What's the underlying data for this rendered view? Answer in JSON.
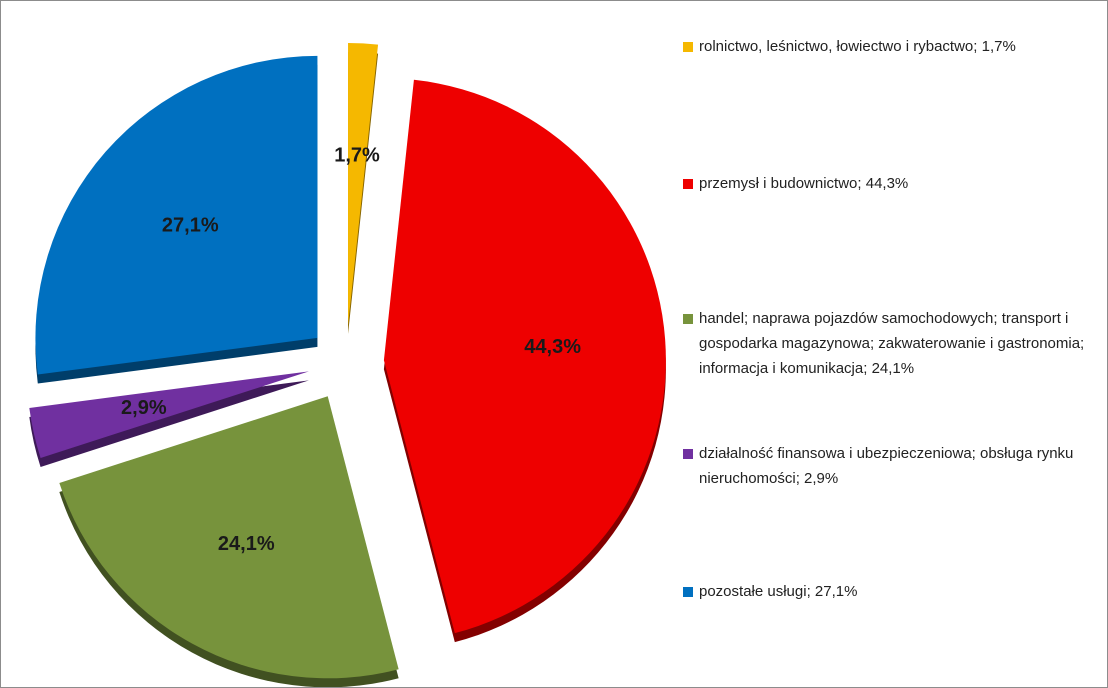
{
  "chart_data": {
    "type": "pie",
    "categories": [
      "rolnictwo, leśnictwo, łowiectwo i rybactwo; 1,7%",
      "przemysł i budownictwo; 44,3%",
      "handel; naprawa pojazdów samochodowych; transport i gospodarka magazynowa; zakwaterowanie i gastronomia; informacja i komunikacja; 24,1%",
      "działalność finansowa i ubezpieczeniowa; obsługa rynku nieruchomości; 2,9%",
      "pozostałe usługi; 27,1%"
    ],
    "values": [
      1.7,
      44.3,
      24.1,
      2.9,
      27.1
    ],
    "value_labels": [
      "1,7%",
      "44,3%",
      "24,1%",
      "2,9%",
      "27,1%"
    ],
    "colors": [
      "#f5b800",
      "#ee0000",
      "#77933c",
      "#7030a0",
      "#0070c0"
    ],
    "legend": "right"
  }
}
